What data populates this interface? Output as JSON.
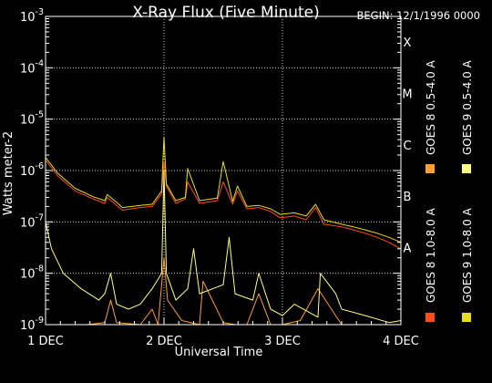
{
  "chart_data": {
    "type": "line",
    "title": "X-Ray Flux (Five Minute)",
    "begin_label": "BEGIN: 12/1/1996 0000",
    "xlabel": "Universal Time",
    "ylabel": "Watts meter-2",
    "x_ticks": [
      "1 DEC",
      "2 DEC",
      "3 DEC",
      "4 DEC"
    ],
    "xlim_days": [
      0,
      3
    ],
    "y_scale": "log",
    "ylim": [
      1e-09,
      0.001
    ],
    "y_ticks": [
      {
        "value": 1e-09,
        "mant": "10",
        "exp": "-9"
      },
      {
        "value": 1e-08,
        "mant": "10",
        "exp": "-8"
      },
      {
        "value": 1e-07,
        "mant": "10",
        "exp": "-7"
      },
      {
        "value": 1e-06,
        "mant": "10",
        "exp": "-6"
      },
      {
        "value": 1e-05,
        "mant": "10",
        "exp": "-5"
      },
      {
        "value": 0.0001,
        "mant": "10",
        "exp": "-4"
      },
      {
        "value": 0.001,
        "mant": "10",
        "exp": "-3"
      }
    ],
    "flare_classes": [
      {
        "label": "A",
        "value": 1e-08
      },
      {
        "label": "B",
        "value": 1e-07
      },
      {
        "label": "C",
        "value": 1e-06
      },
      {
        "label": "M",
        "value": 1e-05
      },
      {
        "label": "X",
        "value": 0.0001
      }
    ],
    "grid": "dotted at each power of ten and each day",
    "colors": {
      "goes8_long": "#ff4a1a",
      "goes8_short": "#ff9d2e",
      "goes9_long": "#e5dd1e",
      "goes9_short": "#ffff80",
      "axes": "#ffffff",
      "grid": "#ffffff"
    },
    "legend": [
      {
        "label": "GOES 8 1.0-8.0 A",
        "color": "#ff4a1a"
      },
      {
        "label": "GOES 8 0.5-4.0 A",
        "color": "#ff9d2e"
      },
      {
        "label": "GOES 9 1.0-8.0 A",
        "color": "#e5dd1e"
      },
      {
        "label": "GOES 9 0.5-4.0 A",
        "color": "#ffff80"
      }
    ],
    "series": [
      {
        "name": "GOES 8 1.0-8.0 A",
        "color": "#ff4a1a",
        "x_day": [
          0,
          0.1,
          0.25,
          0.4,
          0.5,
          0.52,
          0.6,
          0.65,
          0.8,
          0.9,
          0.98,
          1.0,
          1.02,
          1.1,
          1.18,
          1.2,
          1.3,
          1.45,
          1.5,
          1.58,
          1.62,
          1.7,
          1.8,
          1.9,
          1.98,
          2.1,
          2.2,
          2.28,
          2.35,
          2.5,
          2.6,
          2.7,
          2.8,
          2.9,
          3.0
        ],
        "y": [
          1.6e-06,
          8e-07,
          4e-07,
          2.8e-07,
          2.3e-07,
          3e-07,
          2.1e-07,
          1.7e-07,
          1.9e-07,
          2e-07,
          3.5e-07,
          1.5e-06,
          5e-07,
          2.3e-07,
          2.8e-07,
          6e-07,
          2.3e-07,
          2.6e-07,
          6e-07,
          2.2e-07,
          4e-07,
          1.8e-07,
          1.9e-07,
          1.6e-07,
          1.2e-07,
          1.3e-07,
          1.1e-07,
          1.9e-07,
          9e-08,
          8e-08,
          7e-08,
          6e-08,
          5e-08,
          4e-08,
          3e-08
        ]
      },
      {
        "name": "GOES 8 0.5-4.0 A",
        "color": "#ff9d2e",
        "x_day": [
          0,
          0.15,
          0.35,
          0.5,
          0.55,
          0.6,
          0.8,
          0.9,
          0.95,
          1.0,
          1.03,
          1.15,
          1.3,
          1.33,
          1.5,
          1.6,
          1.7,
          1.8,
          1.9,
          2.0,
          2.15,
          2.3,
          2.5,
          2.6,
          2.75,
          3.0
        ],
        "y": [
          1e-09,
          1e-09,
          1e-09,
          1.1e-09,
          3e-09,
          1.1e-09,
          1e-09,
          2e-09,
          1e-09,
          2e-08,
          3e-09,
          1.2e-09,
          1e-09,
          7e-09,
          1.1e-09,
          1e-09,
          1e-09,
          4e-09,
          1e-09,
          1e-09,
          1.2e-09,
          5e-09,
          1e-09,
          1e-09,
          1e-09,
          1e-09
        ]
      },
      {
        "name": "GOES 9 1.0-8.0 A",
        "color": "#e5dd1e",
        "x_day": [
          0,
          0.1,
          0.25,
          0.4,
          0.5,
          0.52,
          0.6,
          0.65,
          0.8,
          0.9,
          0.98,
          1.0,
          1.02,
          1.1,
          1.18,
          1.2,
          1.3,
          1.45,
          1.5,
          1.58,
          1.62,
          1.7,
          1.8,
          1.9,
          1.98,
          2.1,
          2.2,
          2.28,
          2.35,
          2.5,
          2.6,
          2.7,
          2.8,
          2.9,
          3.0
        ],
        "y": [
          1.8e-06,
          9e-07,
          4.5e-07,
          3.1e-07,
          2.6e-07,
          3.4e-07,
          2.4e-07,
          1.9e-07,
          2.1e-07,
          2.2e-07,
          4e-07,
          4.5e-06,
          5.5e-07,
          2.6e-07,
          3e-07,
          1.1e-06,
          2.6e-07,
          2.9e-07,
          1.5e-06,
          2.5e-07,
          5e-07,
          2e-07,
          2.1e-07,
          1.8e-07,
          1.4e-07,
          1.5e-07,
          1.3e-07,
          2.2e-07,
          1.1e-07,
          9e-08,
          8e-08,
          7e-08,
          6e-08,
          5e-08,
          4e-08
        ]
      },
      {
        "name": "GOES 9 0.5-4.0 A",
        "color": "#ffff80",
        "x_day": [
          0,
          0.05,
          0.15,
          0.3,
          0.45,
          0.5,
          0.55,
          0.6,
          0.7,
          0.8,
          0.9,
          0.98,
          1.0,
          1.02,
          1.1,
          1.2,
          1.25,
          1.3,
          1.5,
          1.55,
          1.6,
          1.75,
          1.8,
          1.9,
          2.0,
          2.1,
          2.3,
          2.32,
          2.45,
          2.5,
          2.7,
          2.9,
          3.0
        ],
        "y": [
          1e-07,
          3e-08,
          1e-08,
          5e-09,
          3e-09,
          4e-09,
          1e-08,
          2.5e-09,
          2e-09,
          2.5e-09,
          5e-09,
          1e-08,
          1e-06,
          1e-08,
          3e-09,
          5e-09,
          3e-08,
          4e-09,
          6e-09,
          5e-08,
          4e-09,
          3e-09,
          1e-08,
          2e-09,
          1.5e-09,
          2.5e-09,
          1.4e-09,
          1e-08,
          4e-09,
          2e-09,
          1.5e-09,
          1.1e-09,
          1.2e-09
        ]
      }
    ]
  }
}
